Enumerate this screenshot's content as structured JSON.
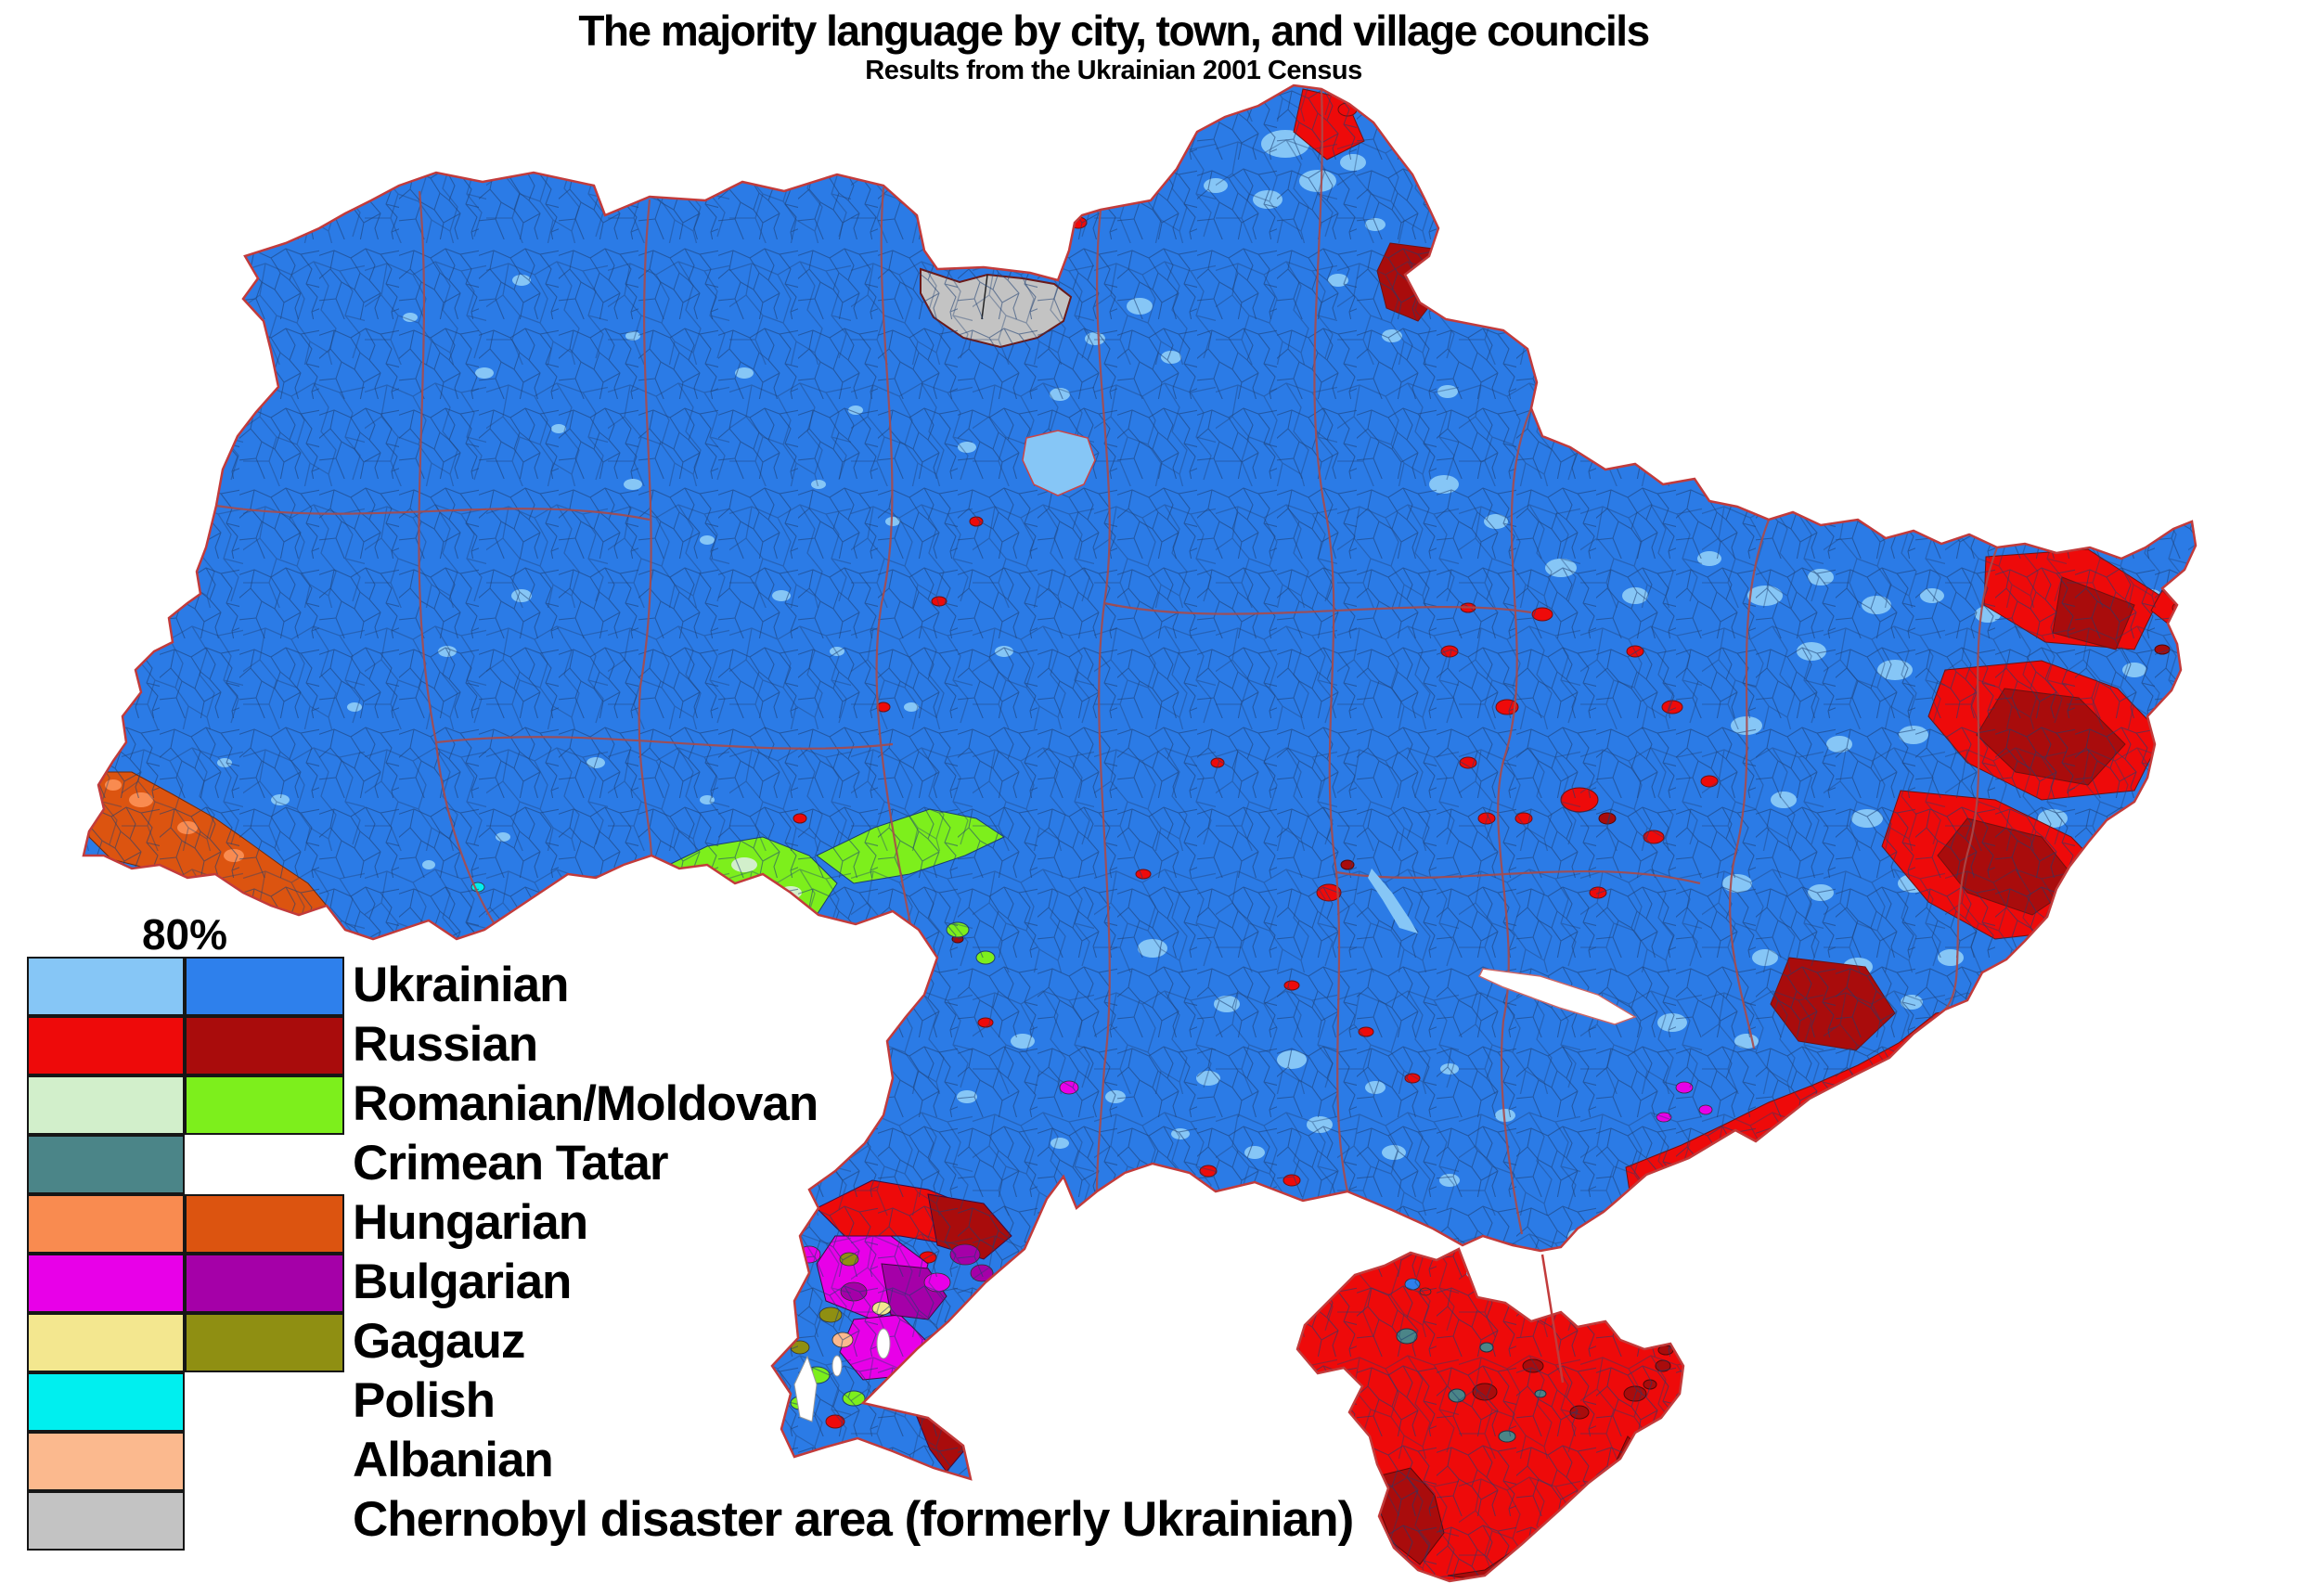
{
  "title": "The majority language by city, town, and village councils",
  "subtitle": "Results from the Ukrainian 2001 Census",
  "legend": {
    "threshold_label": "80%",
    "rows": [
      {
        "label": "Ukrainian",
        "below_80": "#86C6F6",
        "above_80": "#2E80EC"
      },
      {
        "label": "Russian",
        "below_80": "#EE0A0A",
        "above_80": "#A90C0C"
      },
      {
        "label": "Romanian/Moldovan",
        "below_80": "#D2EFCB",
        "above_80": "#7DEF1C"
      },
      {
        "label": "Crimean Tatar",
        "below_80": "#4B8588",
        "above_80": null
      },
      {
        "label": "Hungarian",
        "below_80": "#F98B50",
        "above_80": "#DC5410"
      },
      {
        "label": "Bulgarian",
        "below_80": "#E800E8",
        "above_80": "#A500A8"
      },
      {
        "label": "Gagauz",
        "below_80": "#F3E78F",
        "above_80": "#8F8F12"
      },
      {
        "label": "Polish",
        "below_80": "#00EFEF",
        "above_80": null
      },
      {
        "label": "Albanian",
        "below_80": "#FBB98E",
        "above_80": null
      },
      {
        "label": "Chernobyl disaster area (formerly Ukrainian)",
        "below_80": "#C3C3C3",
        "above_80": null
      }
    ]
  },
  "colors": {
    "ukrainian_below": "#86C6F6",
    "ukrainian_above": "#2E80EC",
    "russian_below": "#EE0A0A",
    "russian_above": "#A90C0C",
    "romanian_below": "#D2EFCB",
    "romanian_above": "#7DEF1C",
    "crimean_tatar": "#4B8588",
    "hungarian_below": "#F98B50",
    "hungarian_above": "#DC5410",
    "bulgarian_below": "#E800E8",
    "bulgarian_above": "#A500A8",
    "gagauz_below": "#F3E78F",
    "gagauz_above": "#8F8F12",
    "polish": "#00EFEF",
    "albanian": "#FBB98E",
    "chernobyl": "#C3C3C3",
    "map_base": "#2B7BE6",
    "council_border": "#1B3C6E",
    "district_border": "#A84A4A",
    "country_border": "#C23B3B",
    "water": "#FFFFFF"
  }
}
